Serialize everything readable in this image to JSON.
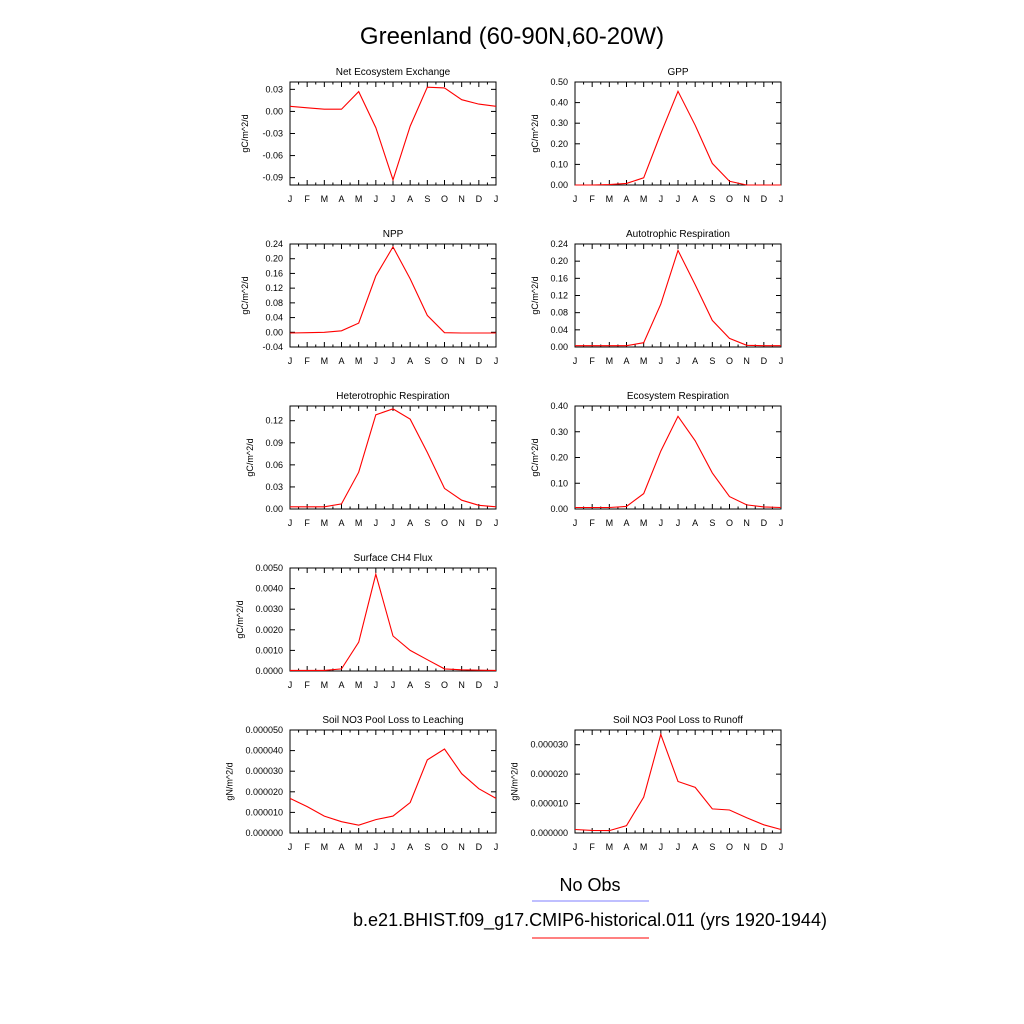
{
  "title": "Greenland (60-90N,60-20W)",
  "months": [
    "J",
    "F",
    "M",
    "A",
    "M",
    "J",
    "J",
    "A",
    "S",
    "O",
    "N",
    "D",
    "J"
  ],
  "legend": [
    {
      "label": "No Obs",
      "color": "#7f7fff"
    },
    {
      "label": "b.e21.BHIST.f09_g17.CMIP6-historical.011 (yrs 1920-1944)",
      "color": "#ff0000"
    }
  ],
  "chart_data": [
    {
      "type": "line",
      "title": "Net Ecosystem Exchange",
      "ylabel": "gC/m^2/d",
      "ylim": [
        -0.1,
        0.04
      ],
      "yticks": [
        0.03,
        0.0,
        -0.03,
        -0.06,
        -0.09
      ],
      "yticklabels": [
        "0.03",
        "0.00",
        "-0.03",
        "-0.06",
        "-0.09"
      ],
      "values": [
        0.007,
        0.005,
        0.003,
        0.003,
        0.027,
        -0.022,
        -0.093,
        -0.02,
        0.033,
        0.032,
        0.016,
        0.01,
        0.007
      ]
    },
    {
      "type": "line",
      "title": "GPP",
      "ylabel": "gC/m^2/d",
      "ylim": [
        0.0,
        0.5
      ],
      "yticks": [
        0.5,
        0.4,
        0.3,
        0.2,
        0.1,
        0.0
      ],
      "yticklabels": [
        "0.50",
        "0.40",
        "0.30",
        "0.20",
        "0.10",
        "0.00"
      ],
      "values": [
        0.0,
        0.0,
        0.002,
        0.008,
        0.035,
        0.25,
        0.455,
        0.29,
        0.105,
        0.018,
        0.0,
        0.0,
        0.0
      ]
    },
    {
      "type": "line",
      "title": "NPP",
      "ylabel": "gC/m^2/d",
      "ylim": [
        -0.04,
        0.24
      ],
      "yticks": [
        0.24,
        0.2,
        0.16,
        0.12,
        0.08,
        0.04,
        0.0,
        -0.04
      ],
      "yticklabels": [
        "0.24",
        "0.20",
        "0.16",
        "0.12",
        "0.08",
        "0.04",
        "0.00",
        "-0.04"
      ],
      "values": [
        -0.002,
        -0.001,
        0.0,
        0.004,
        0.025,
        0.153,
        0.232,
        0.145,
        0.046,
        -0.001,
        -0.002,
        -0.002,
        -0.002
      ]
    },
    {
      "type": "line",
      "title": "Autotrophic Respiration",
      "ylabel": "gC/m^2/d",
      "ylim": [
        0.0,
        0.24
      ],
      "yticks": [
        0.24,
        0.2,
        0.16,
        0.12,
        0.08,
        0.04,
        0.0
      ],
      "yticklabels": [
        "0.24",
        "0.20",
        "0.16",
        "0.12",
        "0.08",
        "0.04",
        "0.00"
      ],
      "values": [
        0.003,
        0.003,
        0.003,
        0.003,
        0.01,
        0.1,
        0.225,
        0.145,
        0.062,
        0.02,
        0.004,
        0.003,
        0.003
      ]
    },
    {
      "type": "line",
      "title": "Heterotrophic Respiration",
      "ylabel": "gC/m^2/d",
      "ylim": [
        0.0,
        0.14
      ],
      "yticks": [
        0.12,
        0.09,
        0.06,
        0.03,
        0.0
      ],
      "yticklabels": [
        "0.12",
        "0.09",
        "0.06",
        "0.03",
        "0.00"
      ],
      "values": [
        0.003,
        0.003,
        0.003,
        0.007,
        0.05,
        0.128,
        0.136,
        0.122,
        0.077,
        0.028,
        0.012,
        0.005,
        0.003
      ]
    },
    {
      "type": "line",
      "title": "Ecosystem Respiration",
      "ylabel": "gC/m^2/d",
      "ylim": [
        0.0,
        0.4
      ],
      "yticks": [
        0.4,
        0.3,
        0.2,
        0.1,
        0.0
      ],
      "yticklabels": [
        "0.40",
        "0.30",
        "0.20",
        "0.10",
        "0.00"
      ],
      "values": [
        0.006,
        0.006,
        0.006,
        0.01,
        0.06,
        0.225,
        0.36,
        0.265,
        0.14,
        0.048,
        0.016,
        0.008,
        0.006
      ]
    },
    {
      "type": "line",
      "title": "Surface CH4 Flux",
      "ylabel": "gC/m^2/d",
      "ylim": [
        0.0,
        0.005
      ],
      "yticks": [
        0.005,
        0.004,
        0.003,
        0.002,
        0.001,
        0.0
      ],
      "yticklabels": [
        "0.0050",
        "0.0040",
        "0.0030",
        "0.0020",
        "0.0010",
        "0.0000"
      ],
      "values": [
        3e-05,
        3e-05,
        3e-05,
        0.0001,
        0.0014,
        0.0047,
        0.0017,
        0.001,
        0.00055,
        0.0001,
        6e-05,
        4e-05,
        3e-05
      ]
    },
    null,
    {
      "type": "line",
      "title": "Soil NO3 Pool Loss to Leaching",
      "ylabel": "gN/m^2/d",
      "ylim": [
        0.0,
        5e-05
      ],
      "yticks": [
        5e-05,
        4e-05,
        3e-05,
        2e-05,
        1e-05,
        0.0
      ],
      "yticklabels": [
        "0.000050",
        "0.000040",
        "0.000030",
        "0.000020",
        "0.000010",
        "0.000000"
      ],
      "values": [
        1.68e-05,
        1.28e-05,
        8.2e-06,
        5.5e-06,
        3.8e-06,
        6.5e-06,
        8.2e-06,
        1.48e-05,
        3.55e-05,
        4.08e-05,
        2.88e-05,
        2.15e-05,
        1.68e-05
      ]
    },
    {
      "type": "line",
      "title": "Soil NO3 Pool Loss to Runoff",
      "ylabel": "gN/m^2/d",
      "ylim": [
        0.0,
        3.5e-05
      ],
      "yticks": [
        3e-05,
        2e-05,
        1e-05,
        0.0
      ],
      "yticklabels": [
        "0.000030",
        "0.000020",
        "0.000010",
        "0.000000"
      ],
      "values": [
        1.2e-06,
        9e-07,
        8e-07,
        2.5e-06,
        1.22e-05,
        3.35e-05,
        1.75e-05,
        1.55e-05,
        8.2e-06,
        7.8e-06,
        5.2e-06,
        2.8e-06,
        1.2e-06
      ]
    }
  ]
}
